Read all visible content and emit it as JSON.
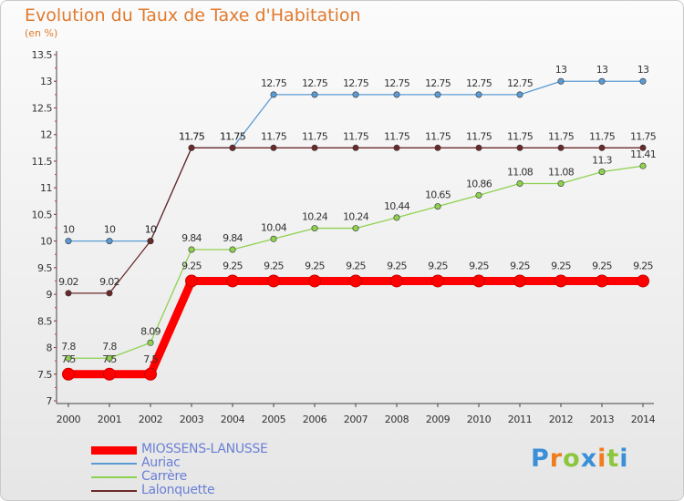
{
  "chart_data": {
    "type": "line",
    "title": "Evolution du Taux de Taxe d'Habitation",
    "subtitle": "(en %)",
    "xlabel": "",
    "ylabel": "",
    "x": [
      "2000",
      "2001",
      "2002",
      "2003",
      "2004",
      "2005",
      "2006",
      "2007",
      "2008",
      "2009",
      "2010",
      "2011",
      "2012",
      "2013",
      "2014"
    ],
    "ylim": [
      7,
      13.5
    ],
    "yticks": [
      "7",
      "7.5",
      "8",
      "8.5",
      "9",
      "9.5",
      "10",
      "10.5",
      "11",
      "11.5",
      "12",
      "12.5",
      "13",
      "13.5"
    ],
    "grid": false,
    "legend_position": "bottom-left",
    "series": [
      {
        "name": "Auriac",
        "color": "#5b9bd5",
        "values": [
          10,
          10,
          10,
          11.75,
          11.75,
          12.75,
          12.75,
          12.75,
          12.75,
          12.75,
          12.75,
          12.75,
          13,
          13,
          13
        ],
        "labels": [
          "10",
          "10",
          "10",
          "11.75",
          "11.75",
          "12.75",
          "12.75",
          "12.75",
          "12.75",
          "12.75",
          "12.75",
          "12.75",
          "13",
          "13",
          "13"
        ]
      },
      {
        "name": "Carrère",
        "color": "#8fd14f",
        "values": [
          7.8,
          7.8,
          8.09,
          9.84,
          9.84,
          10.04,
          10.24,
          10.24,
          10.44,
          10.65,
          10.86,
          11.08,
          11.08,
          11.3,
          11.41
        ],
        "labels": [
          "7.8",
          "7.8",
          "8.09",
          "9.84",
          "9.84",
          "10.04",
          "10.24",
          "10.24",
          "10.44",
          "10.65",
          "10.86",
          "11.08",
          "11.08",
          "11.3",
          "11.41"
        ]
      },
      {
        "name": "Lalonquette",
        "color": "#6b2a2a",
        "values": [
          9.02,
          9.02,
          10,
          11.75,
          11.75,
          11.75,
          11.75,
          11.75,
          11.75,
          11.75,
          11.75,
          11.75,
          11.75,
          11.75,
          11.75
        ],
        "labels": [
          "9.02",
          "9.02",
          "10",
          "11.75",
          "11.75",
          "11.75",
          "11.75",
          "11.75",
          "11.75",
          "11.75",
          "11.75",
          "11.75",
          "11.75",
          "11.75",
          "11.75"
        ]
      },
      {
        "name": "MIOSSENS-LANUSSE",
        "color": "#ff0000",
        "highlight": true,
        "values": [
          7.5,
          7.5,
          7.5,
          9.25,
          9.25,
          9.25,
          9.25,
          9.25,
          9.25,
          9.25,
          9.25,
          9.25,
          9.25,
          9.25,
          9.25
        ],
        "labels": [
          "7.5",
          "7.5",
          "7.5",
          "9.25",
          "9.25",
          "9.25",
          "9.25",
          "9.25",
          "9.25",
          "9.25",
          "9.25",
          "9.25",
          "9.25",
          "9.25",
          "9.25"
        ]
      }
    ],
    "legend": [
      "MIOSSENS-LANUSSE",
      "Auriac",
      "Carrère",
      "Lalonquette"
    ]
  },
  "logo": {
    "letters": [
      "P",
      "r",
      "o",
      "x",
      "i",
      "t",
      "i"
    ],
    "colors": [
      "#3a8fd9",
      "#f07c1e",
      "#8cc63f",
      "#3a8fd9",
      "#f07c1e",
      "#8cc63f",
      "#3a8fd9"
    ]
  }
}
